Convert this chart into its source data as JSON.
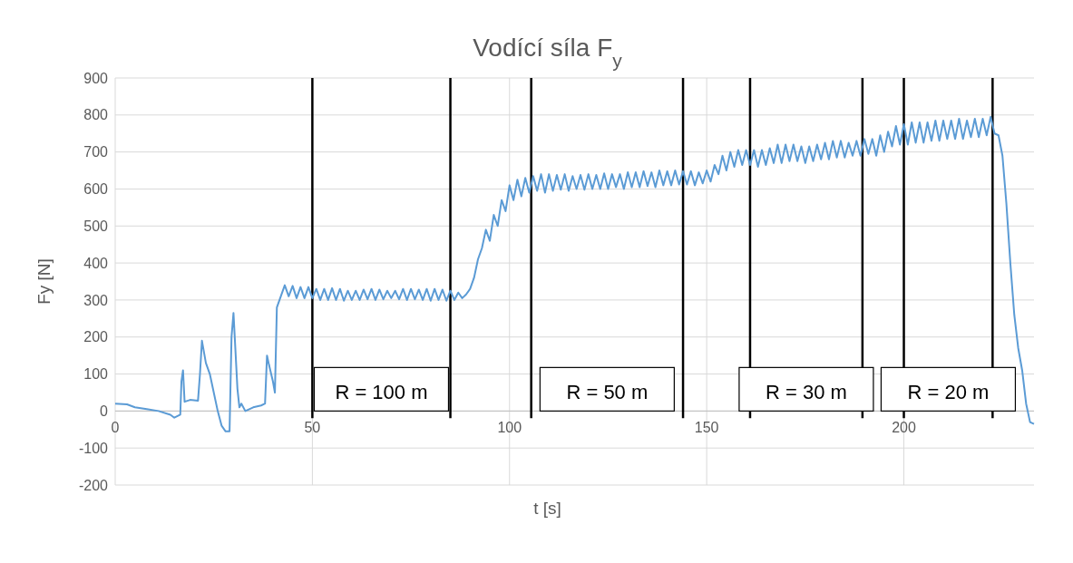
{
  "chart_data": {
    "type": "line",
    "title": "Vodící síla F$_{y}$",
    "xlabel": "t [s]",
    "ylabel": "Fy [N]",
    "xlim": [
      0,
      233
    ],
    "xticks": [
      0,
      50,
      100,
      150,
      200
    ],
    "ylim": [
      -200,
      900
    ],
    "yticks": [
      -200,
      -100,
      0,
      100,
      200,
      300,
      400,
      500,
      600,
      700,
      800,
      900
    ],
    "grid": true,
    "ref_lines": [
      {
        "axis": "x",
        "value": 50,
        "color": "#000000"
      },
      {
        "axis": "x",
        "value": 85,
        "color": "#000000"
      },
      {
        "axis": "x",
        "value": 105.5,
        "color": "#000000"
      },
      {
        "axis": "x",
        "value": 144,
        "color": "#000000"
      },
      {
        "axis": "x",
        "value": 161,
        "color": "#000000"
      },
      {
        "axis": "x",
        "value": 189.5,
        "color": "#000000"
      },
      {
        "axis": "x",
        "value": 200,
        "color": "#000000"
      },
      {
        "axis": "x",
        "value": 222.5,
        "color": "#000000"
      }
    ],
    "annotations": [
      "R = 100 m",
      "R = 50 m",
      "R = 30 m",
      "R = 20 m"
    ],
    "series": [
      {
        "color": "#5b9bd5",
        "x": [
          0,
          3,
          5,
          8,
          11,
          14,
          15,
          16.5,
          16.8,
          17.2,
          17.6,
          19,
          21,
          21.5,
          22,
          23,
          24,
          25,
          26,
          27,
          28,
          29,
          29.5,
          30,
          31,
          31.5,
          32,
          33,
          35,
          37,
          38,
          38.5,
          39,
          40,
          40.5,
          41,
          42,
          43,
          44,
          45,
          46,
          47,
          48,
          49,
          50,
          51,
          52,
          53,
          54,
          55,
          56,
          57,
          58,
          59,
          60,
          61,
          62,
          63,
          64,
          65,
          66,
          67,
          68,
          69,
          70,
          71,
          72,
          73,
          74,
          75,
          76,
          77,
          78,
          79,
          80,
          81,
          82,
          83,
          84,
          85,
          86,
          87,
          88,
          89,
          90,
          91,
          92,
          93,
          94,
          95,
          96,
          97,
          98,
          99,
          100,
          101,
          102,
          103,
          104,
          105,
          106,
          107,
          108,
          109,
          110,
          111,
          112,
          113,
          114,
          115,
          116,
          117,
          118,
          119,
          120,
          121,
          122,
          123,
          124,
          125,
          126,
          127,
          128,
          129,
          130,
          131,
          132,
          133,
          134,
          135,
          136,
          137,
          138,
          139,
          140,
          141,
          142,
          143,
          144,
          145,
          146,
          147,
          148,
          149,
          150,
          151,
          152,
          153,
          154,
          155,
          156,
          157,
          158,
          159,
          160,
          161,
          162,
          163,
          164,
          165,
          166,
          167,
          168,
          169,
          170,
          171,
          172,
          173,
          174,
          175,
          176,
          177,
          178,
          179,
          180,
          181,
          182,
          183,
          184,
          185,
          186,
          187,
          188,
          189,
          190,
          191,
          192,
          193,
          194,
          195,
          196,
          197,
          198,
          199,
          200,
          201,
          202,
          203,
          204,
          205,
          206,
          207,
          208,
          209,
          210,
          211,
          212,
          213,
          214,
          215,
          216,
          217,
          218,
          219,
          220,
          221,
          222,
          223,
          224,
          225,
          226,
          227,
          228,
          229,
          230,
          231,
          232,
          233
        ],
        "values": [
          20,
          18,
          10,
          5,
          0,
          -10,
          -18,
          -10,
          80,
          110,
          25,
          30,
          28,
          100,
          190,
          130,
          100,
          50,
          0,
          -40,
          -55,
          -55,
          200,
          265,
          60,
          10,
          20,
          0,
          10,
          15,
          20,
          150,
          125,
          80,
          50,
          280,
          310,
          340,
          310,
          338,
          305,
          335,
          305,
          335,
          305,
          330,
          300,
          330,
          300,
          332,
          300,
          330,
          298,
          325,
          300,
          325,
          300,
          328,
          302,
          330,
          300,
          328,
          302,
          325,
          305,
          325,
          302,
          330,
          300,
          330,
          302,
          328,
          300,
          330,
          298,
          330,
          300,
          328,
          298,
          325,
          300,
          320,
          305,
          315,
          330,
          360,
          410,
          440,
          490,
          460,
          530,
          500,
          570,
          540,
          610,
          570,
          625,
          580,
          630,
          590,
          635,
          595,
          640,
          590,
          640,
          595,
          638,
          598,
          640,
          595,
          635,
          600,
          638,
          598,
          640,
          600,
          638,
          600,
          642,
          600,
          640,
          605,
          640,
          600,
          645,
          605,
          645,
          605,
          648,
          608,
          645,
          605,
          650,
          610,
          648,
          610,
          650,
          612,
          648,
          612,
          648,
          610,
          645,
          615,
          650,
          620,
          665,
          640,
          690,
          650,
          700,
          660,
          705,
          665,
          705,
          665,
          705,
          660,
          705,
          665,
          710,
          670,
          720,
          670,
          720,
          675,
          720,
          675,
          715,
          670,
          715,
          675,
          720,
          680,
          725,
          680,
          730,
          685,
          730,
          685,
          725,
          690,
          730,
          690,
          735,
          695,
          735,
          690,
          745,
          700,
          755,
          715,
          770,
          720,
          775,
          720,
          780,
          725,
          780,
          725,
          780,
          730,
          785,
          730,
          785,
          735,
          785,
          735,
          790,
          735,
          785,
          740,
          790,
          740,
          790,
          745,
          795,
          750,
          745,
          690,
          560,
          400,
          260,
          170,
          110,
          20,
          -30,
          -35
        ]
      }
    ]
  }
}
